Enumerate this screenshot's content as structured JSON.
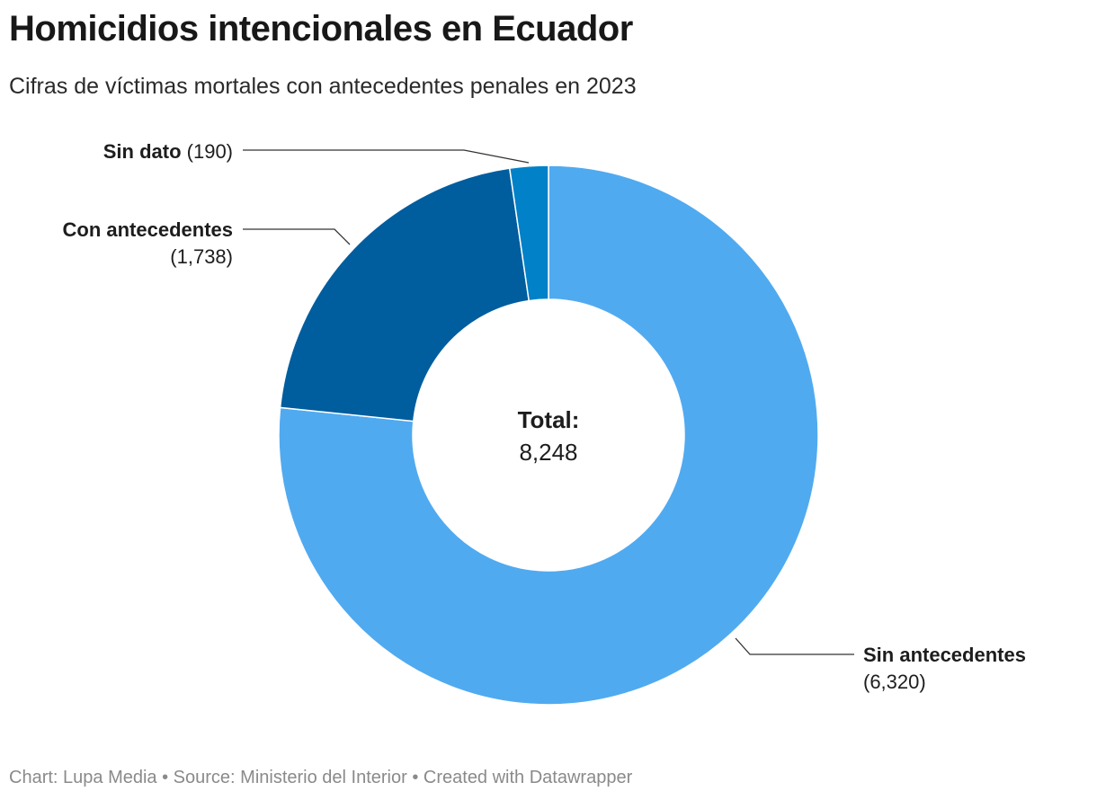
{
  "title": "Homicidios intencionales en Ecuador",
  "subtitle": "Cifras de víctimas mortales con antecedentes penales en 2023",
  "footer": {
    "chart_credit": "Chart: Lupa Media",
    "separator": " • ",
    "source": "Source: Ministerio del Interior",
    "tool": "Created with Datawrapper"
  },
  "center": {
    "label": "Total:",
    "value": "8,248"
  },
  "chart_data": {
    "type": "pie",
    "variant": "donut",
    "title": "Homicidios intencionales en Ecuador",
    "subtitle": "Cifras de víctimas mortales con antecedentes penales en 2023",
    "slices": [
      {
        "name": "Sin antecedentes",
        "value": 6320,
        "value_label": "(6,320)",
        "color": "#50aaf0"
      },
      {
        "name": "Con antecedentes",
        "value": 1738,
        "value_label": "(1,738)",
        "color": "#005d9e"
      },
      {
        "name": "Sin dato",
        "value": 190,
        "value_label": "(190)",
        "color": "#0081c8"
      }
    ],
    "total": 8248
  }
}
